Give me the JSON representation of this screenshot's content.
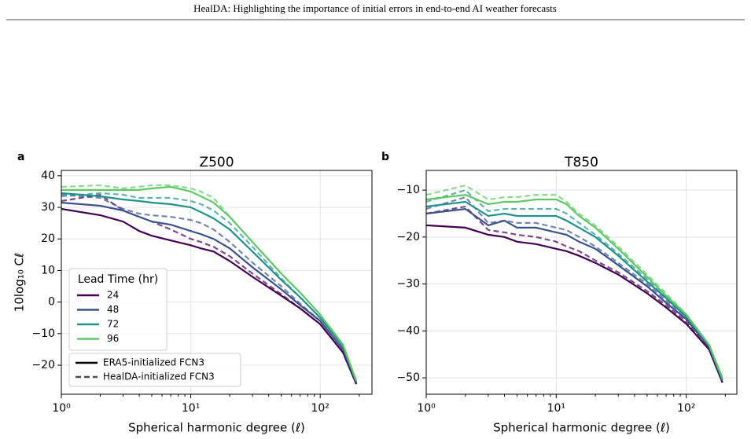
{
  "header": {
    "title": "HealDA: Highlighting the importance of initial errors in end-to-end AI weather forecasts"
  },
  "chart_data": [
    {
      "type": "line",
      "panel": "a",
      "title": "Z500",
      "x_label": "Spherical harmonic degree (ℓ)",
      "y_label": "10log₁₀ Cℓ",
      "log_x": true,
      "grid": true,
      "xlim": [
        1,
        251
      ],
      "ylim": [
        -29.2,
        41.7
      ],
      "xticks": [
        {
          "value": 1,
          "label": "10⁰"
        },
        {
          "value": 10,
          "label": "10¹"
        },
        {
          "value": 100,
          "label": "10²"
        }
      ],
      "yticks": [
        {
          "value": -20,
          "label": "−20"
        },
        {
          "value": -10,
          "label": "−10"
        },
        0,
        10,
        20,
        30,
        40
      ],
      "x": [
        1,
        2,
        3,
        4,
        5,
        7,
        10,
        12,
        15,
        20,
        30,
        50,
        70,
        100,
        150,
        190
      ],
      "legend": {
        "title": "Lead Time (hr)",
        "position": "lower left"
      },
      "line_styles": [
        {
          "name": "ERA5-initialized FCN3",
          "dash": "solid"
        },
        {
          "name": "HealDA-initialized FCN3",
          "dash": "dashed"
        }
      ],
      "series": [
        {
          "name": "24",
          "color": "#440154",
          "values": [
            [
              29.5,
              27.5,
              25.5,
              22.5,
              21,
              19.5,
              18,
              17,
              16,
              13,
              8,
              2,
              -2,
              -7,
              -16,
              -26
            ],
            [
              32,
              34,
              29,
              27,
              25.5,
              23,
              20,
              19,
              17.5,
              14.5,
              9,
              2.5,
              -2,
              -7,
              -16,
              -26
            ]
          ]
        },
        {
          "name": "48",
          "color": "#3b528b",
          "values": [
            [
              31.5,
              30.5,
              29,
              27,
              25.5,
              24.5,
              22.5,
              21.5,
              20,
              17,
              11,
              4,
              -1,
              -6,
              -15,
              -25.5
            ],
            [
              34,
              33,
              29.5,
              28,
              27.5,
              27,
              26,
              25,
              23,
              19,
              12.5,
              5,
              -0.5,
              -6,
              -15,
              -25.5
            ]
          ]
        },
        {
          "name": "72",
          "color": "#21918c",
          "values": [
            [
              34.5,
              33.5,
              32.5,
              32,
              31.5,
              31,
              30,
              28.5,
              26.5,
              23,
              16,
              7,
              1.5,
              -5,
              -14,
              -25
            ],
            [
              33.5,
              34.5,
              34,
              33,
              33,
              33,
              32,
              31,
              29,
              25,
              17.5,
              7.5,
              1.5,
              -5,
              -14,
              -25
            ]
          ]
        },
        {
          "name": "96",
          "color": "#5ec962",
          "values": [
            [
              35.5,
              35.5,
              35.5,
              35.5,
              36,
              36.5,
              35,
              33.5,
              31.5,
              27,
              19,
              9,
              3,
              -4,
              -13.5,
              -25
            ],
            [
              36.5,
              37,
              36,
              36.5,
              37,
              37,
              36,
              35,
              33,
              27,
              19,
              9,
              3,
              -4,
              -13.5,
              -25
            ]
          ]
        }
      ]
    },
    {
      "type": "line",
      "panel": "b",
      "title": "T850",
      "x_label": "Spherical harmonic degree (ℓ)",
      "log_x": true,
      "grid": true,
      "xlim": [
        1,
        245
      ],
      "ylim": [
        -53.5,
        -5.8
      ],
      "xticks": [
        {
          "value": 1,
          "label": "10⁰"
        },
        {
          "value": 10,
          "label": "10¹"
        },
        {
          "value": 100,
          "label": "10²"
        }
      ],
      "yticks": [
        {
          "value": -50,
          "label": "−50"
        },
        {
          "value": -40,
          "label": "−40"
        },
        {
          "value": -30,
          "label": "−30"
        },
        {
          "value": -20,
          "label": "−20"
        },
        {
          "value": -10,
          "label": "−10"
        }
      ],
      "x": [
        1,
        2,
        3,
        4,
        5,
        7,
        10,
        12,
        15,
        20,
        30,
        50,
        70,
        100,
        150,
        190
      ],
      "line_styles": [
        {
          "dash": "solid"
        },
        {
          "dash": "dashed"
        }
      ],
      "series": [
        {
          "color": "#440154",
          "values": [
            [
              -17.5,
              -18,
              -19.5,
              -20,
              -21,
              -21.5,
              -22.5,
              -23,
              -24,
              -25.5,
              -28,
              -32,
              -35,
              -38.5,
              -44,
              -51
            ],
            [
              -15,
              -13.5,
              -18.5,
              -19,
              -19.5,
              -20,
              -21,
              -22,
              -23,
              -25,
              -27.5,
              -31.5,
              -34.5,
              -38,
              -44,
              -51
            ]
          ]
        },
        {
          "color": "#3b528b",
          "values": [
            [
              -15,
              -14,
              -17.5,
              -16.5,
              -18,
              -18,
              -19,
              -19.5,
              -21,
              -22.5,
              -26,
              -30.5,
              -34,
              -37.5,
              -43.5,
              -50.5
            ],
            [
              -14,
              -11.5,
              -17,
              -16.5,
              -17,
              -17,
              -18,
              -18.5,
              -20,
              -22,
              -25.5,
              -30,
              -33.5,
              -37,
              -43.5,
              -50.5
            ]
          ]
        },
        {
          "color": "#21918c",
          "values": [
            [
              -13.5,
              -12.5,
              -15.5,
              -15,
              -15.5,
              -15.5,
              -15.5,
              -16.5,
              -18,
              -20,
              -24,
              -29.5,
              -33,
              -37,
              -43,
              -50.5
            ],
            [
              -12.5,
              -10,
              -14.5,
              -14,
              -14,
              -14,
              -14,
              -15,
              -17,
              -19.5,
              -23.5,
              -29,
              -33,
              -37,
              -43,
              -50.5
            ]
          ]
        },
        {
          "color": "#5ec962",
          "values": [
            [
              -12,
              -11,
              -13,
              -12.5,
              -12.5,
              -12,
              -12,
              -13,
              -15.5,
              -18,
              -22.5,
              -28.5,
              -32.5,
              -36.5,
              -43,
              -50
            ],
            [
              -11,
              -9,
              -12,
              -11.5,
              -11.5,
              -11,
              -11,
              -12.5,
              -15,
              -17.5,
              -22,
              -28,
              -32,
              -36.5,
              -43,
              -50
            ]
          ]
        }
      ]
    }
  ]
}
